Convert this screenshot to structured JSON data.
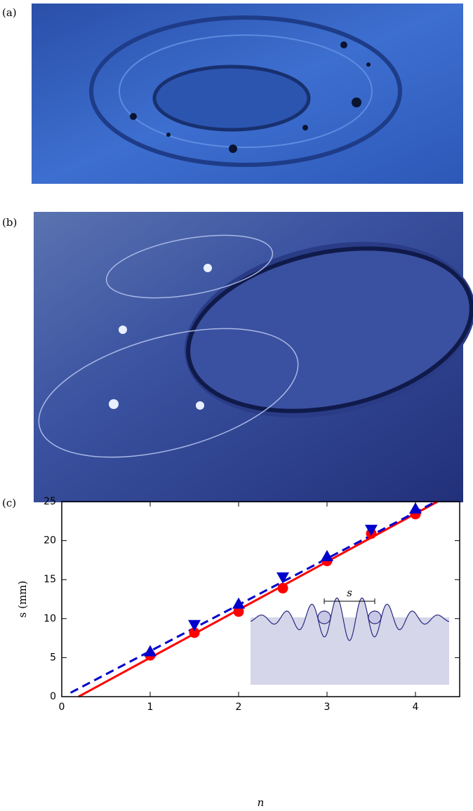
{
  "panels": {
    "a": "(a)",
    "b": "(b)",
    "c": "(c)"
  },
  "chart_data": {
    "type": "scatter",
    "xlabel": "n",
    "ylabel": "s (mm)",
    "inset_label": "s",
    "xlim": [
      0,
      4.5
    ],
    "ylim": [
      0,
      25
    ],
    "xticks": [
      0,
      1,
      2,
      3,
      4
    ],
    "yticks": [
      0,
      5,
      10,
      15,
      20,
      25
    ],
    "series": [
      {
        "color": "#ff0000",
        "marker": [
          "circle",
          "circle",
          "circle",
          "circle",
          "circle",
          "circle",
          "circle"
        ],
        "x": [
          1,
          1.5,
          2,
          2.5,
          3,
          3.5,
          4
        ],
        "values": [
          5.3,
          8.2,
          10.9,
          13.9,
          17.4,
          20.9,
          23.4
        ]
      },
      {
        "color": "#0000cc",
        "marker": [
          "triangle-up",
          "triangle-down",
          "triangle-up",
          "triangle-down",
          "triangle-up",
          "triangle-down",
          "triangle-up"
        ],
        "x": [
          1,
          1.5,
          2,
          2.5,
          3,
          3.5,
          4
        ],
        "values": [
          5.8,
          9.2,
          11.9,
          15.3,
          18.0,
          21.4,
          24.1
        ]
      }
    ],
    "fits": [
      {
        "color": "#ff0000",
        "dash": false,
        "x": [
          0.19,
          4.25
        ],
        "values": [
          0,
          25
        ]
      },
      {
        "color": "#0000cc",
        "dash": true,
        "x": [
          0.1,
          4.23
        ],
        "values": [
          0.5,
          25
        ]
      }
    ]
  }
}
